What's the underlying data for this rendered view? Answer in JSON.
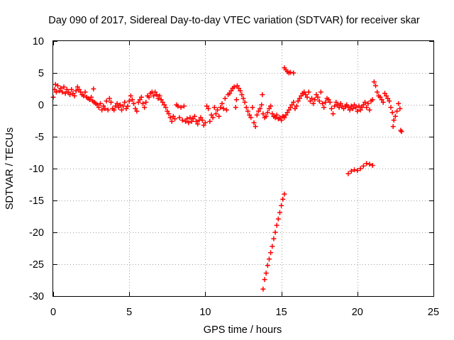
{
  "chart_data": {
    "type": "scatter",
    "title": "Day 090 of 2017, Sidereal Day-to-day VTEC variation (SDTVAR) for receiver skar",
    "xlabel": "GPS time / hours",
    "ylabel": "SDTVAR / TECUs",
    "xlim": [
      0,
      25
    ],
    "ylim": [
      -30,
      10
    ],
    "xticks": [
      0,
      5,
      10,
      15,
      20,
      25
    ],
    "yticks": [
      -30,
      -25,
      -20,
      -15,
      -10,
      -5,
      0,
      5,
      10
    ],
    "grid": true,
    "marker": "+",
    "series": [
      {
        "name": "SDTVAR",
        "color": "#ff0000",
        "points": [
          [
            0.0,
            1.2
          ],
          [
            0.1,
            2.4
          ],
          [
            0.15,
            3.2
          ],
          [
            0.2,
            2.0
          ],
          [
            0.3,
            3.0
          ],
          [
            0.4,
            2.2
          ],
          [
            0.5,
            2.6
          ],
          [
            0.6,
            2.0
          ],
          [
            0.7,
            2.8
          ],
          [
            0.8,
            1.8
          ],
          [
            0.9,
            2.4
          ],
          [
            1.0,
            2.0
          ],
          [
            1.1,
            1.6
          ],
          [
            1.2,
            2.4
          ],
          [
            1.3,
            1.8
          ],
          [
            1.4,
            1.4
          ],
          [
            1.5,
            2.2
          ],
          [
            1.6,
            2.8
          ],
          [
            1.7,
            2.4
          ],
          [
            1.8,
            2.0
          ],
          [
            1.9,
            1.6
          ],
          [
            2.0,
            1.4
          ],
          [
            2.1,
            2.0
          ],
          [
            2.2,
            1.2
          ],
          [
            2.3,
            1.0
          ],
          [
            2.4,
            0.8
          ],
          [
            2.5,
            1.2
          ],
          [
            2.6,
            0.6
          ],
          [
            2.65,
            2.5
          ],
          [
            2.7,
            0.4
          ],
          [
            2.8,
            0.2
          ],
          [
            2.9,
            0.0
          ],
          [
            3.0,
            -0.4
          ],
          [
            3.1,
            0.2
          ],
          [
            3.2,
            -0.8
          ],
          [
            3.3,
            -0.2
          ],
          [
            3.4,
            -0.6
          ],
          [
            3.5,
            0.6
          ],
          [
            3.6,
            -0.8
          ],
          [
            3.7,
            1.0
          ],
          [
            3.8,
            0.4
          ],
          [
            3.9,
            -0.6
          ],
          [
            4.0,
            -0.8
          ],
          [
            4.1,
            -0.2
          ],
          [
            4.2,
            0.2
          ],
          [
            4.3,
            -0.4
          ],
          [
            4.4,
            0.0
          ],
          [
            4.5,
            -0.8
          ],
          [
            4.6,
            -0.2
          ],
          [
            4.7,
            0.4
          ],
          [
            4.8,
            -0.6
          ],
          [
            4.9,
            -0.2
          ],
          [
            5.0,
            0.6
          ],
          [
            5.1,
            1.4
          ],
          [
            5.2,
            0.8
          ],
          [
            5.3,
            0.2
          ],
          [
            5.4,
            -0.6
          ],
          [
            5.5,
            -1.0
          ],
          [
            5.6,
            0.4
          ],
          [
            5.7,
            0.8
          ],
          [
            5.8,
            1.2
          ],
          [
            5.9,
            0.2
          ],
          [
            6.0,
            -0.4
          ],
          [
            6.1,
            0.4
          ],
          [
            6.2,
            1.4
          ],
          [
            6.3,
            1.2
          ],
          [
            6.4,
            1.8
          ],
          [
            6.5,
            2.0
          ],
          [
            6.6,
            1.4
          ],
          [
            6.7,
            2.0
          ],
          [
            6.8,
            1.6
          ],
          [
            6.9,
            1.0
          ],
          [
            7.0,
            1.4
          ],
          [
            7.1,
            0.8
          ],
          [
            7.2,
            0.4
          ],
          [
            7.3,
            0.0
          ],
          [
            7.4,
            -0.4
          ],
          [
            7.5,
            -1.0
          ],
          [
            7.6,
            -1.4
          ],
          [
            7.7,
            -2.0
          ],
          [
            7.8,
            -2.6
          ],
          [
            7.9,
            -1.8
          ],
          [
            8.0,
            -2.2
          ],
          [
            8.1,
            0.0
          ],
          [
            8.2,
            -0.2
          ],
          [
            8.3,
            -2.0
          ],
          [
            8.4,
            -0.4
          ],
          [
            8.5,
            -2.4
          ],
          [
            8.6,
            -0.2
          ],
          [
            8.7,
            -2.6
          ],
          [
            8.8,
            -2.2
          ],
          [
            8.9,
            -2.8
          ],
          [
            9.0,
            -2.0
          ],
          [
            9.1,
            -2.6
          ],
          [
            9.2,
            -2.2
          ],
          [
            9.3,
            -1.8
          ],
          [
            9.4,
            -2.6
          ],
          [
            9.5,
            -3.0
          ],
          [
            9.6,
            -2.4
          ],
          [
            9.7,
            -2.0
          ],
          [
            9.8,
            -2.4
          ],
          [
            9.9,
            -3.2
          ],
          [
            10.0,
            -2.8
          ],
          [
            10.1,
            -0.2
          ],
          [
            10.2,
            -0.6
          ],
          [
            10.3,
            -2.6
          ],
          [
            10.4,
            -1.6
          ],
          [
            10.5,
            -2.0
          ],
          [
            10.6,
            -0.4
          ],
          [
            10.7,
            -1.4
          ],
          [
            10.8,
            -0.8
          ],
          [
            10.9,
            -1.8
          ],
          [
            11.0,
            -0.4
          ],
          [
            11.1,
            0.2
          ],
          [
            11.2,
            -0.6
          ],
          [
            11.3,
            1.0
          ],
          [
            11.4,
            -0.8
          ],
          [
            11.5,
            1.6
          ],
          [
            11.6,
            1.8
          ],
          [
            11.7,
            2.2
          ],
          [
            11.8,
            2.6
          ],
          [
            11.9,
            2.8
          ],
          [
            12.0,
            -0.4
          ],
          [
            12.05,
            0.8
          ],
          [
            12.1,
            3.0
          ],
          [
            12.2,
            2.6
          ],
          [
            12.3,
            2.2
          ],
          [
            12.4,
            1.6
          ],
          [
            12.5,
            1.0
          ],
          [
            12.6,
            0.4
          ],
          [
            12.7,
            -0.4
          ],
          [
            12.8,
            -1.0
          ],
          [
            12.9,
            -1.6
          ],
          [
            13.0,
            -2.0
          ],
          [
            13.1,
            -0.4
          ],
          [
            13.2,
            -2.8
          ],
          [
            13.3,
            -3.4
          ],
          [
            13.4,
            -1.6
          ],
          [
            13.5,
            -1.0
          ],
          [
            13.6,
            -0.6
          ],
          [
            13.7,
            0.0
          ],
          [
            13.75,
            1.6
          ],
          [
            13.8,
            -1.4
          ],
          [
            13.9,
            -2.0
          ],
          [
            14.0,
            -1.8
          ],
          [
            14.1,
            -1.2
          ],
          [
            14.2,
            -0.6
          ],
          [
            14.3,
            -0.2
          ],
          [
            14.4,
            -1.4
          ],
          [
            14.5,
            -1.8
          ],
          [
            14.6,
            -2.0
          ],
          [
            14.7,
            -1.6
          ],
          [
            14.8,
            -2.2
          ],
          [
            14.9,
            -2.0
          ],
          [
            15.0,
            -2.4
          ],
          [
            15.1,
            -1.8
          ],
          [
            15.2,
            -2.0
          ],
          [
            15.3,
            -1.6
          ],
          [
            15.4,
            -1.2
          ],
          [
            15.5,
            -0.8
          ],
          [
            15.6,
            -0.4
          ],
          [
            15.7,
            0.0
          ],
          [
            15.8,
            0.4
          ],
          [
            15.9,
            -0.6
          ],
          [
            16.0,
            -0.2
          ],
          [
            16.1,
            0.6
          ],
          [
            16.2,
            1.0
          ],
          [
            16.3,
            1.4
          ],
          [
            16.4,
            1.8
          ],
          [
            16.5,
            2.0
          ],
          [
            16.6,
            1.6
          ],
          [
            16.7,
            1.2
          ],
          [
            16.8,
            2.0
          ],
          [
            16.9,
            0.6
          ],
          [
            17.0,
            1.0
          ],
          [
            17.1,
            0.2
          ],
          [
            17.2,
            0.8
          ],
          [
            17.3,
            1.6
          ],
          [
            17.4,
            1.2
          ],
          [
            17.5,
            0.6
          ],
          [
            17.6,
            2.0
          ],
          [
            17.7,
            0.2
          ],
          [
            17.8,
            -0.4
          ],
          [
            17.9,
            0.4
          ],
          [
            18.0,
            1.0
          ],
          [
            18.1,
            0.8
          ],
          [
            18.2,
            0.4
          ],
          [
            18.3,
            -0.6
          ],
          [
            18.4,
            -1.4
          ],
          [
            18.5,
            -0.2
          ],
          [
            18.6,
            0.4
          ],
          [
            18.7,
            0.0
          ],
          [
            18.8,
            -0.4
          ],
          [
            18.9,
            0.2
          ],
          [
            19.0,
            -0.2
          ],
          [
            19.1,
            -0.6
          ],
          [
            19.2,
            -0.2
          ],
          [
            19.3,
            0.0
          ],
          [
            19.4,
            -0.4
          ],
          [
            19.5,
            -0.8
          ],
          [
            19.6,
            -0.2
          ],
          [
            19.7,
            -0.6
          ],
          [
            19.8,
            0.0
          ],
          [
            19.9,
            -0.4
          ],
          [
            20.0,
            -1.0
          ],
          [
            20.1,
            -0.2
          ],
          [
            20.2,
            -0.8
          ],
          [
            20.3,
            -0.4
          ],
          [
            20.4,
            0.0
          ],
          [
            20.5,
            0.4
          ],
          [
            20.6,
            -0.4
          ],
          [
            20.7,
            0.2
          ],
          [
            20.8,
            -0.8
          ],
          [
            20.9,
            0.6
          ],
          [
            21.0,
            0.8
          ],
          [
            21.1,
            3.6
          ],
          [
            21.2,
            3.0
          ],
          [
            21.3,
            2.0
          ],
          [
            21.4,
            1.4
          ],
          [
            21.5,
            1.2
          ],
          [
            21.6,
            0.8
          ],
          [
            21.7,
            0.4
          ],
          [
            21.8,
            1.8
          ],
          [
            21.9,
            1.4
          ],
          [
            22.0,
            1.0
          ],
          [
            22.1,
            0.6
          ],
          [
            22.2,
            -0.4
          ],
          [
            22.3,
            -1.2
          ],
          [
            22.35,
            -3.4
          ],
          [
            22.4,
            -2.4
          ],
          [
            22.5,
            -1.8
          ],
          [
            22.6,
            -1.0
          ],
          [
            22.7,
            0.2
          ],
          [
            22.8,
            -0.6
          ],
          [
            22.85,
            -4.0
          ],
          [
            22.9,
            -4.2
          ],
          [
            15.2,
            5.8
          ],
          [
            15.3,
            5.5
          ],
          [
            15.4,
            5.2
          ],
          [
            15.5,
            5.0
          ],
          [
            15.6,
            5.1
          ],
          [
            15.8,
            5.0
          ],
          [
            19.4,
            -10.8
          ],
          [
            19.6,
            -10.4
          ],
          [
            19.8,
            -10.2
          ],
          [
            20.0,
            -10.3
          ],
          [
            20.2,
            -10.0
          ],
          [
            20.4,
            -9.6
          ],
          [
            20.6,
            -9.2
          ],
          [
            20.8,
            -9.3
          ],
          [
            21.0,
            -9.5
          ],
          [
            13.8,
            -28.9
          ],
          [
            13.9,
            -27.4
          ],
          [
            14.0,
            -26.4
          ],
          [
            14.1,
            -25.2
          ],
          [
            14.2,
            -24.2
          ],
          [
            14.3,
            -23.2
          ],
          [
            14.4,
            -22.2
          ],
          [
            14.5,
            -21.0
          ],
          [
            14.6,
            -20.0
          ],
          [
            14.7,
            -18.9
          ],
          [
            14.8,
            -17.9
          ],
          [
            14.9,
            -16.9
          ],
          [
            15.0,
            -15.8
          ],
          [
            15.1,
            -14.8
          ],
          [
            15.2,
            -14.0
          ]
        ]
      }
    ]
  }
}
